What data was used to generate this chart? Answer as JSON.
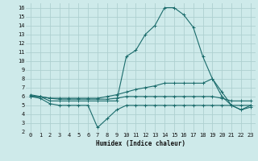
{
  "xlabel": "Humidex (Indice chaleur)",
  "bg_color": "#ceeaea",
  "grid_color": "#aed0d0",
  "line_color": "#1a6b6b",
  "xlim": [
    -0.5,
    23.5
  ],
  "ylim": [
    2,
    16.5
  ],
  "xticks": [
    0,
    1,
    2,
    3,
    4,
    5,
    6,
    7,
    8,
    9,
    10,
    11,
    12,
    13,
    14,
    15,
    16,
    17,
    18,
    19,
    20,
    21,
    22,
    23
  ],
  "yticks": [
    2,
    3,
    4,
    5,
    6,
    7,
    8,
    9,
    10,
    11,
    12,
    13,
    14,
    15,
    16
  ],
  "series": [
    {
      "x": [
        0,
        1,
        2,
        3,
        4,
        5,
        6,
        7,
        8,
        9,
        10,
        11,
        12,
        13,
        14,
        15,
        16,
        17,
        18,
        19,
        20,
        21,
        22,
        23
      ],
      "y": [
        6,
        6,
        5.5,
        5.5,
        5.5,
        5.5,
        5.5,
        5.5,
        5.5,
        5.5,
        10.5,
        11.2,
        13,
        14,
        16,
        16,
        15.2,
        13.8,
        10.5,
        8,
        6,
        5,
        5,
        5
      ]
    },
    {
      "x": [
        0,
        1,
        2,
        3,
        4,
        5,
        6,
        7,
        8,
        9,
        10,
        11,
        12,
        13,
        14,
        15,
        16,
        17,
        18,
        19,
        20,
        21,
        22,
        23
      ],
      "y": [
        6,
        5.8,
        5.2,
        5,
        5,
        5,
        5,
        2.5,
        3.5,
        4.5,
        5,
        5,
        5,
        5,
        5,
        5,
        5,
        5,
        5,
        5,
        5,
        5,
        4.5,
        4.8
      ]
    },
    {
      "x": [
        0,
        1,
        2,
        3,
        4,
        5,
        6,
        7,
        8,
        9,
        10,
        11,
        12,
        13,
        14,
        15,
        16,
        17,
        18,
        19,
        20,
        21,
        22,
        23
      ],
      "y": [
        6,
        6,
        5.8,
        5.8,
        5.8,
        5.8,
        5.8,
        5.8,
        6,
        6.2,
        6.5,
        6.8,
        7,
        7.2,
        7.5,
        7.5,
        7.5,
        7.5,
        7.5,
        8,
        6.5,
        5,
        4.5,
        5
      ]
    },
    {
      "x": [
        0,
        1,
        2,
        3,
        4,
        5,
        6,
        7,
        8,
        9,
        10,
        11,
        12,
        13,
        14,
        15,
        16,
        17,
        18,
        19,
        20,
        21,
        22,
        23
      ],
      "y": [
        6.2,
        6,
        5.8,
        5.7,
        5.7,
        5.7,
        5.7,
        5.7,
        5.7,
        5.8,
        6,
        6,
        6,
        6,
        6,
        6,
        6,
        6,
        6,
        6,
        5.8,
        5.5,
        5.5,
        5.5
      ]
    }
  ]
}
